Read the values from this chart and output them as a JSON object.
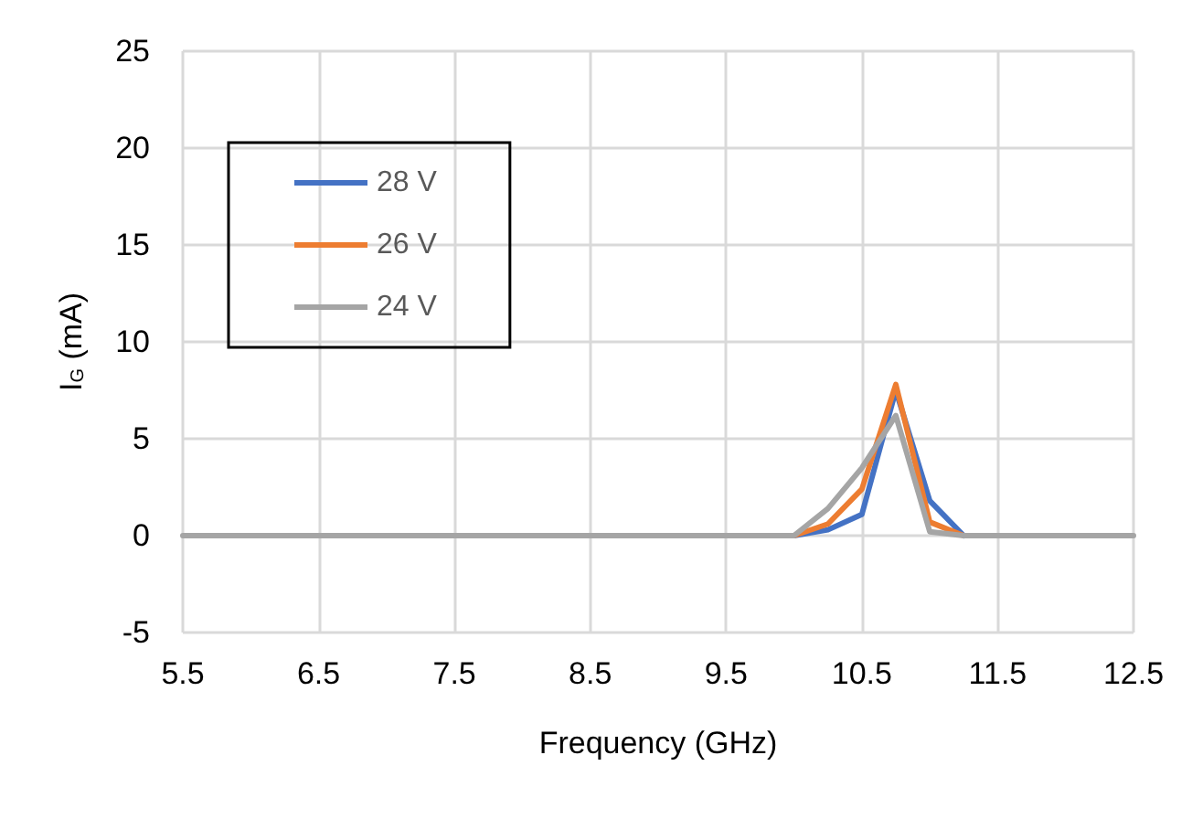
{
  "chart_data": {
    "type": "line",
    "xlabel": "Frequency (GHz)",
    "ylabel": "I$_{G}$ (mA)",
    "x": [
      5.5,
      6,
      6.5,
      7,
      7.5,
      8,
      8.5,
      9,
      9.5,
      10,
      10.25,
      10.5,
      10.75,
      11,
      11.25,
      11.5,
      12,
      12.5
    ],
    "series": [
      {
        "name": "28 V",
        "color": "#4472c4",
        "x": [
          10,
          10.25,
          10.5,
          10.75,
          11,
          11.25
        ],
        "values": [
          0,
          0.3,
          1.1,
          7.5,
          1.8,
          0
        ]
      },
      {
        "name": "26 V",
        "color": "#ed7d31",
        "x": [
          10,
          10.25,
          10.5,
          10.75,
          11,
          11.25
        ],
        "values": [
          0,
          0.6,
          2.4,
          7.8,
          0.7,
          0
        ]
      },
      {
        "name": "24 V",
        "color": "#a5a5a5",
        "values": [
          0,
          0,
          0,
          0,
          0,
          0,
          0,
          0,
          0,
          0,
          1.4,
          3.5,
          6.2,
          0.2,
          0,
          0,
          0,
          0
        ]
      }
    ],
    "xlim": [
      5.5,
      12.5
    ],
    "xticks": [
      5.5,
      6.5,
      7.5,
      8.5,
      9.5,
      10.5,
      11.5,
      12.5
    ],
    "ylim": [
      -5,
      25
    ],
    "yticks": [
      -5,
      0,
      5,
      10,
      15,
      20,
      25
    ],
    "grid": true,
    "legend": "top left",
    "marker": "none",
    "line_style": "solid"
  }
}
